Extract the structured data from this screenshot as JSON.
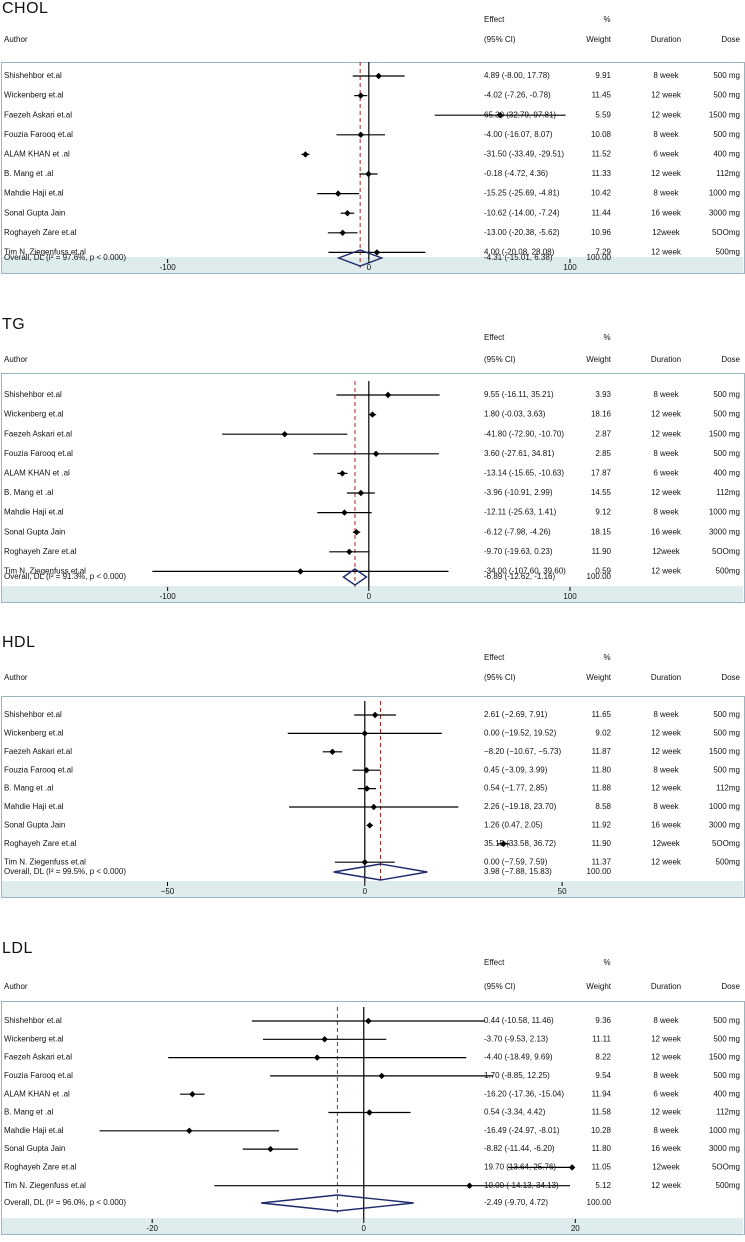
{
  "header_labels": {
    "author": "Author",
    "effect_line1": "Effect",
    "effect_line2": "(95% CI)",
    "weight_line1": "%",
    "weight_line2": "Weight",
    "duration": "Duration",
    "dose": "Dose"
  },
  "colors": {
    "ci_line": "#000000",
    "point": "#000000",
    "null_line": "#000000",
    "overall_line": "#b22222",
    "diamond": "#1f2a6b",
    "axis_band": "#dfecee",
    "frame": "#9ab4c2"
  },
  "chart_data": [
    {
      "type": "forest",
      "title": "CHOL",
      "xlim": [
        -155,
        100
      ],
      "ticks": [
        -100,
        0,
        100
      ],
      "tick_labels": [
        "-100",
        "0",
        "100"
      ],
      "studies": [
        {
          "author": "Shishehbor et.al",
          "es": 4.89,
          "lo": -8.0,
          "hi": 17.78,
          "ci_text": "4.89 (-8.00, 17.78)",
          "weight": "9.91",
          "duration": "8 week",
          "dose": "500 mg"
        },
        {
          "author": "Wickenberg et.al",
          "es": -4.02,
          "lo": -7.26,
          "hi": -0.78,
          "ci_text": "-4.02 (-7.26, -0.78)",
          "weight": "11.45",
          "duration": "12 week",
          "dose": "500 mg"
        },
        {
          "author": "Faezeh Askari et.al",
          "es": 65.3,
          "lo": 32.79,
          "hi": 97.81,
          "ci_text": "65.30 (32.79, 97.81)",
          "weight": "5.59",
          "duration": "12 week",
          "dose": "1500 mg"
        },
        {
          "author": "Fouzia Farooq et.al",
          "es": -4.0,
          "lo": -16.07,
          "hi": 8.07,
          "ci_text": "-4.00 (-16.07, 8.07)",
          "weight": "10.08",
          "duration": "8 week",
          "dose": "500 mg"
        },
        {
          "author": "ALAM KHAN et .al",
          "es": -31.5,
          "lo": -33.49,
          "hi": -29.51,
          "ci_text": "-31.50 (-33.49, -29.51)",
          "weight": "11.52",
          "duration": "6 week",
          "dose": "400 mg"
        },
        {
          "author": "B. Mang et .al",
          "es": -0.18,
          "lo": -4.72,
          "hi": 4.36,
          "ci_text": "-0.18 (-4.72, 4.36)",
          "weight": "11.33",
          "duration": "12 week",
          "dose": "112mg"
        },
        {
          "author": "Mahdie Haji et.al",
          "es": -15.25,
          "lo": -25.69,
          "hi": -4.81,
          "ci_text": "-15.25 (-25.69, -4.81)",
          "weight": "10.42",
          "duration": "8 week",
          "dose": "1000 mg"
        },
        {
          "author": "Sonal Gupta Jain",
          "es": -10.62,
          "lo": -14.0,
          "hi": -7.24,
          "ci_text": "-10.62 (-14.00, -7.24)",
          "weight": "11.44",
          "duration": "16 week",
          "dose": "3000 mg"
        },
        {
          "author": "Roghayeh Zare et.al",
          "es": -13.0,
          "lo": -20.38,
          "hi": -5.62,
          "ci_text": "-13.00 (-20.38, -5.62)",
          "weight": "10.96",
          "duration": "12week",
          "dose": "5OOmg"
        },
        {
          "author": "Tim N. Ziegenfuss et.al",
          "es": 4.0,
          "lo": -20.08,
          "hi": 28.08,
          "ci_text": "4.00 (-20.08, 28.08)",
          "weight": "7.29",
          "duration": "12 week",
          "dose": "500mg"
        }
      ],
      "overall": {
        "label": "Overall, DL (I² = 97.6%, p < 0.000)",
        "es": -4.31,
        "lo": -15.01,
        "hi": 6.38,
        "ci_text": "-4.31 (-15.01, 6.38)",
        "weight": "100.00"
      }
    },
    {
      "type": "forest",
      "title": "TG",
      "xlim": [
        -155,
        100
      ],
      "ticks": [
        -100,
        0,
        100
      ],
      "tick_labels": [
        "-100",
        "0",
        "100"
      ],
      "studies": [
        {
          "author": "Shishehbor et.al",
          "es": 9.55,
          "lo": -16.11,
          "hi": 35.21,
          "ci_text": "9.55 (-16.11, 35.21)",
          "weight": "3.93",
          "duration": "8 week",
          "dose": "500 mg"
        },
        {
          "author": "Wickenberg et.al",
          "es": 1.8,
          "lo": -0.03,
          "hi": 3.63,
          "ci_text": "1.80 (-0.03, 3.63)",
          "weight": "18.16",
          "duration": "12 week",
          "dose": "500 mg"
        },
        {
          "author": "Faezeh Askari et.al",
          "es": -41.8,
          "lo": -72.9,
          "hi": -10.7,
          "ci_text": "-41.80 (-72.90, -10.70)",
          "weight": "2.87",
          "duration": "12 week",
          "dose": "1500 mg"
        },
        {
          "author": "Fouzia Farooq et.al",
          "es": 3.6,
          "lo": -27.61,
          "hi": 34.81,
          "ci_text": "3.60 (-27.61, 34.81)",
          "weight": "2.85",
          "duration": "8 week",
          "dose": "500 mg"
        },
        {
          "author": "ALAM KHAN et .al",
          "es": -13.14,
          "lo": -15.65,
          "hi": -10.63,
          "ci_text": "-13.14 (-15.65, -10.63)",
          "weight": "17.87",
          "duration": "6 week",
          "dose": "400 mg"
        },
        {
          "author": "B. Mang et .al",
          "es": -3.96,
          "lo": -10.91,
          "hi": 2.99,
          "ci_text": "-3.96 (-10.91, 2.99)",
          "weight": "14.55",
          "duration": "12 week",
          "dose": "112mg"
        },
        {
          "author": "Mahdie Haji et.al",
          "es": -12.11,
          "lo": -25.63,
          "hi": 1.41,
          "ci_text": "-12.11 (-25.63, 1.41)",
          "weight": "9.12",
          "duration": "8 week",
          "dose": "1000 mg"
        },
        {
          "author": "Sonal Gupta Jain",
          "es": -6.12,
          "lo": -7.98,
          "hi": -4.26,
          "ci_text": "-6.12 (-7.98, -4.26)",
          "weight": "18.15",
          "duration": "16 week",
          "dose": "3000 mg"
        },
        {
          "author": "Roghayeh Zare et.al",
          "es": -9.7,
          "lo": -19.63,
          "hi": 0.23,
          "ci_text": "-9.70 (-19.63, 0.23)",
          "weight": "11.90",
          "duration": "12week",
          "dose": "5OOmg"
        },
        {
          "author": "Tim N. Ziegenfuss et.al",
          "es": -34.0,
          "lo": -107.6,
          "hi": 39.6,
          "ci_text": "-34.00 (-107.60, 39.60)",
          "weight": "0.59",
          "duration": "12 week",
          "dose": "500mg"
        }
      ],
      "overall": {
        "label": "Overall, DL (I² = 91.3%, p < 0.000)",
        "es": -6.89,
        "lo": -12.62,
        "hi": -1.16,
        "ci_text": "-6.89 (-12.62, -1.16)",
        "weight": "100.00"
      }
    },
    {
      "type": "forest",
      "title": "HDL",
      "xlim": [
        -78,
        52
      ],
      "ticks": [
        -50,
        0,
        50
      ],
      "tick_labels": [
        "−50",
        "0",
        "50"
      ],
      "studies": [
        {
          "author": "Shishehbor et.al",
          "es": 2.61,
          "lo": -2.69,
          "hi": 7.91,
          "ci_text": "2.61 (−2.69, 7.91)",
          "weight": "11.65",
          "duration": "8 week",
          "dose": "500 mg"
        },
        {
          "author": "Wickenberg et.al",
          "es": 0.0,
          "lo": -19.52,
          "hi": 19.52,
          "ci_text": "0.00 (−19.52, 19.52)",
          "weight": "9.02",
          "duration": "12 week",
          "dose": "500 mg"
        },
        {
          "author": "Faezeh Askari et.al",
          "es": -8.2,
          "lo": -10.67,
          "hi": -5.73,
          "ci_text": "−8.20 (−10.67, −5.73)",
          "weight": "11.87",
          "duration": "12 week",
          "dose": "1500 mg"
        },
        {
          "author": "Fouzia Farooq et.al",
          "es": 0.45,
          "lo": -3.09,
          "hi": 3.99,
          "ci_text": "0.45 (−3.09, 3.99)",
          "weight": "11.80",
          "duration": "8 week",
          "dose": "500 mg"
        },
        {
          "author": "B. Mang et .al",
          "es": 0.54,
          "lo": -1.77,
          "hi": 2.85,
          "ci_text": "0.54 (−1.77, 2.85)",
          "weight": "11.88",
          "duration": "12 week",
          "dose": "112mg"
        },
        {
          "author": "Mahdie Haji et.al",
          "es": 2.26,
          "lo": -19.18,
          "hi": 23.7,
          "ci_text": "2.26 (−19.18, 23.70)",
          "weight": "8.58",
          "duration": "8 week",
          "dose": "1000 mg"
        },
        {
          "author": "Sonal Gupta Jain",
          "es": 1.26,
          "lo": 0.47,
          "hi": 2.05,
          "ci_text": "1.26 (0.47, 2.05)",
          "weight": "11.92",
          "duration": "16 week",
          "dose": "3000 mg"
        },
        {
          "author": "Roghayeh Zare et.al",
          "es": 35.15,
          "lo": 33.58,
          "hi": 36.72,
          "ci_text": "35.15 (33.58, 36.72)",
          "weight": "11.90",
          "duration": "12week",
          "dose": "5OOmg"
        },
        {
          "author": "Tim N. Ziegenfuss et.al",
          "es": 0.0,
          "lo": -7.59,
          "hi": 7.59,
          "ci_text": "0.00 (−7.59, 7.59)",
          "weight": "11.37",
          "duration": "12 week",
          "dose": "500mg"
        }
      ],
      "overall": {
        "label": "Overall, DL (I² = 99.5%, p < 0.000)",
        "es": 3.98,
        "lo": -7.88,
        "hi": 15.83,
        "ci_text": "3.98 (−7.88, 15.83)",
        "weight": "100.00"
      }
    },
    {
      "type": "forest",
      "title": "LDL",
      "xlim": [
        -29,
        19.5
      ],
      "ticks": [
        -20,
        0,
        20
      ],
      "tick_labels": [
        "-20",
        "0",
        "20"
      ],
      "studies": [
        {
          "author": "Shishehbor et.al",
          "es": 0.44,
          "lo": -10.58,
          "hi": 11.46,
          "ci_text": "0.44 (-10.58, 11.46)",
          "weight": "9.36",
          "duration": "8 week",
          "dose": "500 mg"
        },
        {
          "author": "Wickenberg et.al",
          "es": -3.7,
          "lo": -9.53,
          "hi": 2.13,
          "ci_text": "-3.70 (-9.53, 2.13)",
          "weight": "11.11",
          "duration": "12 week",
          "dose": "500 mg"
        },
        {
          "author": "Faezeh Askari et.al",
          "es": -4.4,
          "lo": -18.49,
          "hi": 9.69,
          "ci_text": "-4.40 (-18.49, 9.69)",
          "weight": "8.22",
          "duration": "12 week",
          "dose": "1500 mg"
        },
        {
          "author": "Fouzia Farooq et.al",
          "es": 1.7,
          "lo": -8.85,
          "hi": 12.25,
          "ci_text": "1.70 (-8.85, 12.25)",
          "weight": "9.54",
          "duration": "8 week",
          "dose": "500 mg"
        },
        {
          "author": "ALAM KHAN et .al",
          "es": -16.2,
          "lo": -17.36,
          "hi": -15.04,
          "ci_text": "-16.20 (-17.36, -15.04)",
          "weight": "11.94",
          "duration": "6 week",
          "dose": "400 mg"
        },
        {
          "author": "B. Mang et .al",
          "es": 0.54,
          "lo": -3.34,
          "hi": 4.42,
          "ci_text": "0.54 (-3.34, 4.42)",
          "weight": "11.58",
          "duration": "12 week",
          "dose": "112mg"
        },
        {
          "author": "Mahdie Haji et.al",
          "es": -16.49,
          "lo": -24.97,
          "hi": -8.01,
          "ci_text": "-16.49 (-24.97, -8.01)",
          "weight": "10.28",
          "duration": "8 week",
          "dose": "1000 mg"
        },
        {
          "author": "Sonal Gupta Jain",
          "es": -8.82,
          "lo": -11.44,
          "hi": -6.2,
          "ci_text": "-8.82 (-11.44, -6.20)",
          "weight": "11.80",
          "duration": "16 week",
          "dose": "3000 mg"
        },
        {
          "author": "Roghayeh Zare et.al",
          "es": 19.7,
          "lo": 13.64,
          "hi": 25.76,
          "ci_text": "19.70 (13.64, 25.76)",
          "weight": "11.05",
          "duration": "12week",
          "dose": "5OOmg"
        },
        {
          "author": "Tim N. Ziegenfuss et.al",
          "es": 10.0,
          "lo": -14.13,
          "hi": 34.13,
          "ci_text": "10.00 (-14.13, 34.13)",
          "weight": "5.12",
          "duration": "12 week",
          "dose": "500mg"
        }
      ],
      "overall": {
        "label": "Overall, DL (I² = 96.0%, p < 0.000)",
        "es": -2.49,
        "lo": -9.7,
        "hi": 4.72,
        "ci_text": "-2.49 (-9.70, 4.72)",
        "weight": "100.00"
      }
    }
  ]
}
